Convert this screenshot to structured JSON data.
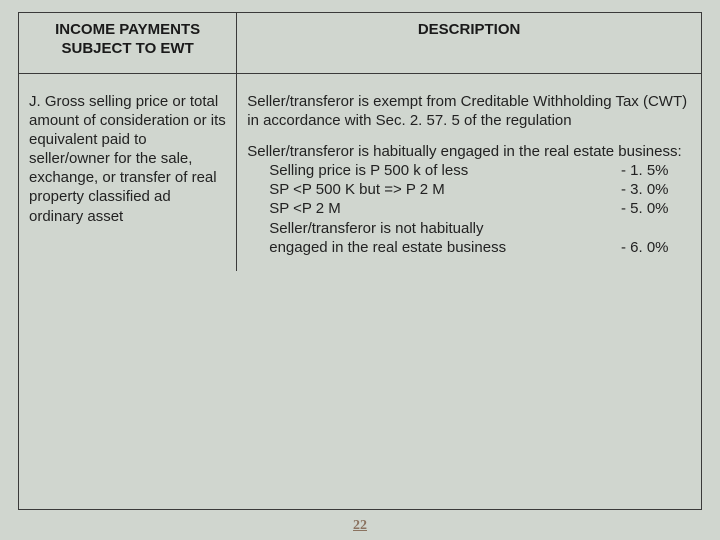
{
  "colors": {
    "background": "#d0d6cf",
    "border": "#3a3a3a",
    "text": "#1a1a1a",
    "pagenum": "#8b7360"
  },
  "table": {
    "headers": {
      "left_line1": "INCOME PAYMENTS",
      "left_line2": "SUBJECT TO EWT",
      "right": "DESCRIPTION"
    },
    "body": {
      "left": "J.  Gross selling price or total amount of consideration or its equivalent paid to seller/owner for the sale, exchange, or transfer of real property classified ad ordinary asset",
      "right_para1": "Seller/transferor is exempt from Creditable Withholding Tax (CWT) in accordance with Sec. 2. 57. 5 of the regulation",
      "right_intro": "Seller/transferor is habitually engaged in the real estate business:",
      "rates": [
        {
          "label": "Selling price is P 500 k of less",
          "value": "-  1. 5%"
        },
        {
          "label": "SP <P 500 K but => P 2 M",
          "value": "-  3. 0%"
        },
        {
          "label": "SP <P 2 M",
          "value": "-  5. 0%"
        }
      ],
      "not_habitual_line1": "Seller/transferor is not habitually",
      "not_habitual_line2": "engaged in the real estate business",
      "not_habitual_rate": "-  6. 0%"
    }
  },
  "page_number": "22"
}
